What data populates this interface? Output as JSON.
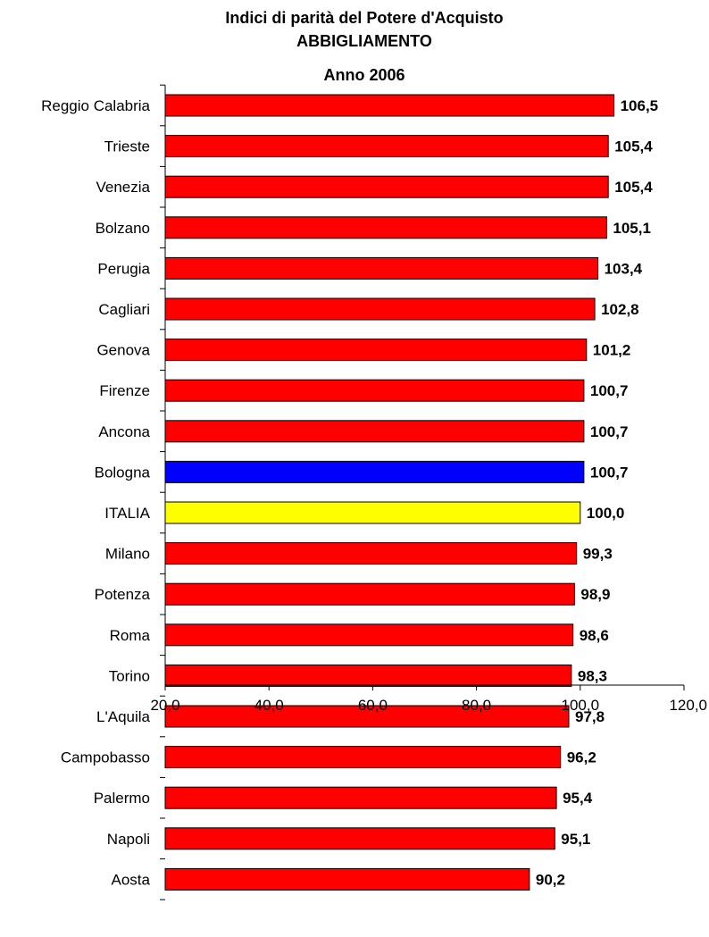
{
  "chart_data": {
    "type": "bar",
    "orientation": "horizontal",
    "title_lines": [
      "Indici di parità del Potere d'Acquisto",
      "ABBIGLIAMENTO",
      "Anno  2006"
    ],
    "categories": [
      "Reggio Calabria",
      "Trieste",
      "Venezia",
      "Bolzano",
      "Perugia",
      "Cagliari",
      "Genova",
      "Firenze",
      "Ancona",
      "Bologna",
      "ITALIA",
      "Milano",
      "Potenza",
      "Roma",
      "Torino",
      "L'Aquila",
      "Campobasso",
      "Palermo",
      "Napoli",
      "Aosta"
    ],
    "values": [
      106.5,
      105.4,
      105.4,
      105.1,
      103.4,
      102.8,
      101.2,
      100.7,
      100.7,
      100.7,
      100.0,
      99.3,
      98.9,
      98.6,
      98.3,
      97.8,
      96.2,
      95.4,
      95.1,
      90.2
    ],
    "value_labels": [
      "106,5",
      "105,4",
      "105,4",
      "105,1",
      "103,4",
      "102,8",
      "101,2",
      "100,7",
      "100,7",
      "100,7",
      "100,0",
      "99,3",
      "98,9",
      "98,6",
      "98,3",
      "97,8",
      "96,2",
      "95,4",
      "95,1",
      "90,2"
    ],
    "bar_colors": [
      "#ff0000",
      "#ff0000",
      "#ff0000",
      "#ff0000",
      "#ff0000",
      "#ff0000",
      "#ff0000",
      "#ff0000",
      "#ff0000",
      "#0000ff",
      "#ffff00",
      "#ff0000",
      "#ff0000",
      "#ff0000",
      "#ff0000",
      "#ff0000",
      "#ff0000",
      "#ff0000",
      "#ff0000",
      "#ff0000"
    ],
    "xlim": [
      20,
      120
    ],
    "xticks": [
      20,
      40,
      60,
      80,
      100,
      120
    ],
    "xtick_labels": [
      "20,0",
      "40,0",
      "60,0",
      "80,0",
      "100,0",
      "120,0"
    ],
    "grid": false,
    "legend": false
  }
}
